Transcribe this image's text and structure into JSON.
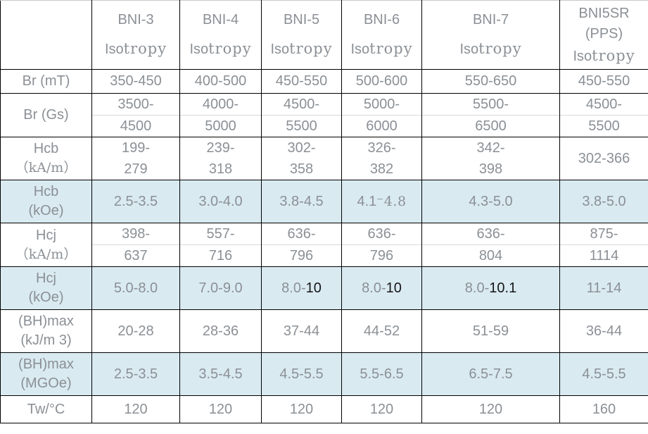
{
  "header": {
    "columns": [
      {
        "name": "BNI-3",
        "name2": "",
        "sub_a": "Iso",
        "sub_b": "tropy"
      },
      {
        "name": "BNI-4",
        "name2": "",
        "sub_a": "Iso",
        "sub_b": "tropy"
      },
      {
        "name": "BNI-5",
        "name2": "",
        "sub_a": "Iso",
        "sub_b": "tropy"
      },
      {
        "name": "BNI-6",
        "name2": "",
        "sub_a": "Iso",
        "sub_b": "tropy"
      },
      {
        "name": "BNI-7",
        "name2": "",
        "sub_a": "Iso",
        "sub_b": "tropy"
      },
      {
        "name": "BNI5SR",
        "name2": "(PPS)",
        "sub_a": "Iso",
        "sub_b": "tropy"
      }
    ]
  },
  "rows": {
    "br_mt": {
      "label": "Br (mT)",
      "cells": [
        "350-450",
        "400-500",
        "450-550",
        "500-600",
        "550-650",
        "450-550"
      ]
    },
    "br_gs": {
      "label": "Br (Gs)",
      "cells": [
        {
          "top": "3500-",
          "bottom": "4500"
        },
        {
          "top": "4000-",
          "bottom": "5000"
        },
        {
          "top": "4500-",
          "bottom": "5500"
        },
        {
          "top": "5000-",
          "bottom": "6000"
        },
        {
          "top": "5500-",
          "bottom": "6500"
        },
        {
          "top": "4500-",
          "bottom": "5500"
        }
      ]
    },
    "hcb_kam": {
      "label": "Hcb",
      "label2": "（kA/m）",
      "cells": [
        {
          "top": "199-",
          "bottom": "279"
        },
        {
          "top": "239-",
          "bottom": "318"
        },
        {
          "top": "302-",
          "bottom": "358"
        },
        {
          "top": "326-",
          "bottom": "382"
        },
        {
          "top": "342-",
          "bottom": "398"
        },
        "302-366"
      ]
    },
    "hcb_koe": {
      "label": "Hcb",
      "label2": "(kOe)",
      "cells": [
        "2.5-3.5",
        "3.0-4.0",
        "3.8-4.5",
        {
          "pre": "4.1",
          "alt": "⁻4.8"
        },
        "4.3-5.0",
        "3.8-5.0"
      ]
    },
    "hcj_kam": {
      "label": "Hcj",
      "label2": "（kA/m）",
      "cells": [
        {
          "top": "398-",
          "bottom": "637"
        },
        {
          "top": "557-",
          "bottom": "716"
        },
        {
          "top": "636-",
          "bottom": "796"
        },
        {
          "top": "636-",
          "bottom": "796"
        },
        {
          "top": "636-",
          "bottom": "804"
        },
        {
          "top": "875-",
          "bottom": "1114"
        }
      ]
    },
    "hcj_koe": {
      "label": "Hcj",
      "label2": "(kOe)",
      "cells": [
        "5.0-8.0",
        "7.0-9.0",
        {
          "pre": "8.0-",
          "em": "10"
        },
        {
          "pre": "8.0-",
          "em": "10"
        },
        {
          "pre": "8.0-",
          "em": "10.1"
        },
        "11-14"
      ]
    },
    "bhmax_kj": {
      "label": "(BH)max",
      "label2": "(kJ/m 3)",
      "cells": [
        "20-28",
        "28-36",
        "37-44",
        "44-52",
        "51-59",
        "36-44"
      ]
    },
    "bhmax_mgoe": {
      "label": "(BH)max",
      "label2": "(MGOe)",
      "cells": [
        "2.5-3.5",
        "3.5-4.5",
        "4.5-5.5",
        "5.5-6.5",
        "6.5-7.5",
        "4.5-5.5"
      ]
    },
    "tw": {
      "label": "Tw/°C",
      "cells": [
        "120",
        "120",
        "120",
        "120",
        "120",
        "160"
      ]
    }
  },
  "colors": {
    "shaded_row_bg": "#d9eaf1",
    "text_gray": "#8b9095",
    "grid_line": "#000000",
    "faint_split_line": "#d9d9d9",
    "highlight_text": "#161616"
  }
}
